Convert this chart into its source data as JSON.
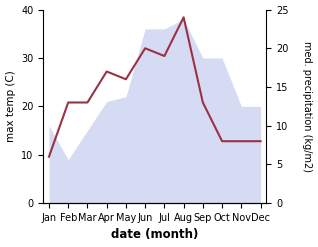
{
  "months": [
    "Jan",
    "Feb",
    "Mar",
    "Apr",
    "May",
    "Jun",
    "Jul",
    "Aug",
    "Sep",
    "Oct",
    "Nov",
    "Dec"
  ],
  "temperature": [
    16,
    9,
    15,
    21,
    22,
    36,
    36,
    38,
    30,
    30,
    20,
    20
  ],
  "precipitation": [
    6,
    13,
    13,
    17,
    16,
    20,
    19,
    24,
    13,
    8,
    8,
    8
  ],
  "precip_color": "#993344",
  "temp_fill_color": "#c8d0f0",
  "temp_fill_alpha": 0.75,
  "ylabel_left": "max temp (C)",
  "ylabel_right": "med. precipitation (kg/m2)",
  "xlabel": "date (month)",
  "ylim_left": [
    0,
    40
  ],
  "ylim_right": [
    0,
    25
  ],
  "yticks_left": [
    0,
    10,
    20,
    30,
    40
  ],
  "yticks_right": [
    0,
    5,
    10,
    15,
    20,
    25
  ],
  "bg_color": "#ffffff"
}
